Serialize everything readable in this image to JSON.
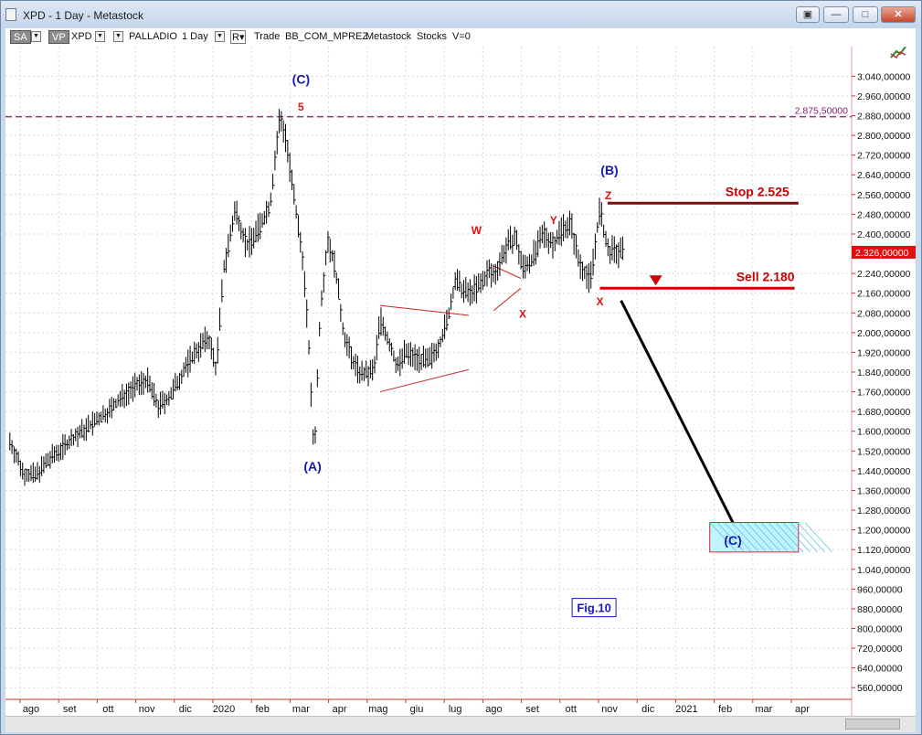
{
  "window": {
    "title": "XPD - 1 Day - Metastock"
  },
  "toolbar": {
    "sa": "SA",
    "vp": "VP",
    "symbol": "XPD",
    "name": "PALLADIO",
    "period": "1 Day",
    "r": "R▾",
    "trade": "Trade",
    "source": "BB_COM_MPREZ",
    "brand": "Metastock",
    "stocks": "Stocks",
    "v": "V=0"
  },
  "chart_data": {
    "type": "line",
    "instrument": "XPD",
    "interval": "1 Day",
    "y_ticks": [
      3040,
      2960,
      2880,
      2800,
      2720,
      2640,
      2560,
      2480,
      2400,
      2240,
      2160,
      2080,
      2000,
      1920,
      1840,
      1760,
      1680,
      1600,
      1520,
      1440,
      1360,
      1280,
      1200,
      1120,
      1040,
      960,
      880,
      800,
      720,
      640,
      560
    ],
    "y_tick_labels": [
      "3.040,00000",
      "2.960,00000",
      "2.880,00000",
      "2.800,00000",
      "2.720,00000",
      "2.640,00000",
      "2.560,00000",
      "2.480,00000",
      "2.400,00000",
      "2.240,00000",
      "2.160,00000",
      "2.080,00000",
      "2.000,00000",
      "1.920,00000",
      "1.840,00000",
      "1.760,00000",
      "1.680,00000",
      "1.600,00000",
      "1.520,00000",
      "1.440,00000",
      "1.360,00000",
      "1.280,00000",
      "1.200,00000",
      "1.120,00000",
      "1.040,00000",
      "960,00000",
      "880,00000",
      "800,00000",
      "720,00000",
      "640,00000",
      "560,00000"
    ],
    "ylim": [
      520,
      3160
    ],
    "months": [
      "ago",
      "set",
      "ott",
      "nov",
      "dic",
      "2020",
      "feb",
      "mar",
      "apr",
      "mag",
      "giu",
      "lug",
      "ago",
      "set",
      "ott",
      "nov",
      "dic",
      "2021",
      "feb",
      "mar",
      "apr"
    ],
    "month_idx": [
      0,
      1,
      2,
      3,
      4,
      5,
      6,
      7,
      8,
      9,
      10,
      11,
      12,
      13,
      14,
      15,
      16,
      17,
      18,
      19,
      20
    ],
    "xlim": [
      -0.5,
      20.8
    ],
    "series": [
      {
        "x": [
          -0.55,
          -0.2,
          0.1,
          0.5,
          1.0,
          1.5,
          2.0,
          2.5,
          3.0,
          3.3,
          3.6,
          4.0,
          4.3,
          4.6,
          4.8,
          5.0,
          5.3,
          5.6,
          5.9,
          6.2,
          6.45,
          6.6,
          6.75,
          6.95,
          7.05,
          7.2,
          7.3,
          7.35,
          7.5,
          7.7,
          7.9,
          8.1,
          8.3,
          8.5,
          8.7,
          8.9,
          9.05,
          9.3,
          9.5,
          9.7,
          10.0,
          10.3,
          10.6,
          10.8,
          11.0,
          11.2,
          11.35,
          11.55,
          11.7,
          11.85,
          12.0,
          12.3,
          12.55,
          12.75,
          13.0,
          13.3,
          13.55,
          13.8,
          14.0,
          14.2,
          14.5,
          14.75,
          14.95,
          15.05,
          15.2,
          15.35
        ],
        "y": [
          1560,
          1430,
          1420,
          1490,
          1560,
          1620,
          1680,
          1760,
          1810,
          1700,
          1740,
          1860,
          1930,
          1980,
          1850,
          2260,
          2500,
          2350,
          2420,
          2520,
          2870,
          2800,
          2620,
          2400,
          2300,
          1960,
          1600,
          1520,
          2100,
          2380,
          2250,
          2000,
          1900,
          1840,
          1830,
          1850,
          2060,
          1950,
          1860,
          1920,
          1900,
          1880,
          1960,
          2050,
          2210,
          2170,
          2160,
          2180,
          2200,
          2250,
          2230,
          2340,
          2390,
          2260,
          2300,
          2400,
          2360,
          2430,
          2440,
          2290,
          2210,
          2500,
          2330,
          2330,
          2326,
          2326
        ]
      }
    ],
    "annotations": [
      {
        "text": "(C)",
        "x": 7.0,
        "y": 3010,
        "color": "#1a1ab0"
      },
      {
        "text": "5",
        "x": 7.0,
        "y": 2900,
        "color": "#dd1111"
      },
      {
        "text": "(A)",
        "x": 7.3,
        "y": 1440,
        "color": "#1a1ab0"
      },
      {
        "text": "W",
        "x": 11.55,
        "y": 2400,
        "color": "#dd1111"
      },
      {
        "text": "X",
        "x": 12.75,
        "y": 2060,
        "color": "#dd1111"
      },
      {
        "text": "Y",
        "x": 13.55,
        "y": 2440,
        "color": "#dd1111"
      },
      {
        "text": "(B)",
        "x": 15.0,
        "y": 2640,
        "color": "#1a1ab0"
      },
      {
        "text": "Z",
        "x": 14.97,
        "y": 2540,
        "color": "#dd1111"
      },
      {
        "text": "X",
        "x": 14.75,
        "y": 2110,
        "color": "#dd1111"
      },
      {
        "text": "(C)",
        "x": 18.2,
        "y": 1140,
        "color": "#1a1ab0"
      }
    ],
    "stop": {
      "label": "Stop 2.525",
      "value": 2525
    },
    "sell": {
      "label": "Sell 2.180",
      "value": 2180
    },
    "resistance": {
      "label": "2.875,50000",
      "value": 2875.5
    },
    "last_price_label": "2.326,00000",
    "figure_label": "Fig.10",
    "grid": true
  },
  "colors": {
    "resistance": "#8b1a6b",
    "levels": "#cc0000",
    "wave_label": "#1a1ab0",
    "wave_sub": "#dd1111"
  }
}
